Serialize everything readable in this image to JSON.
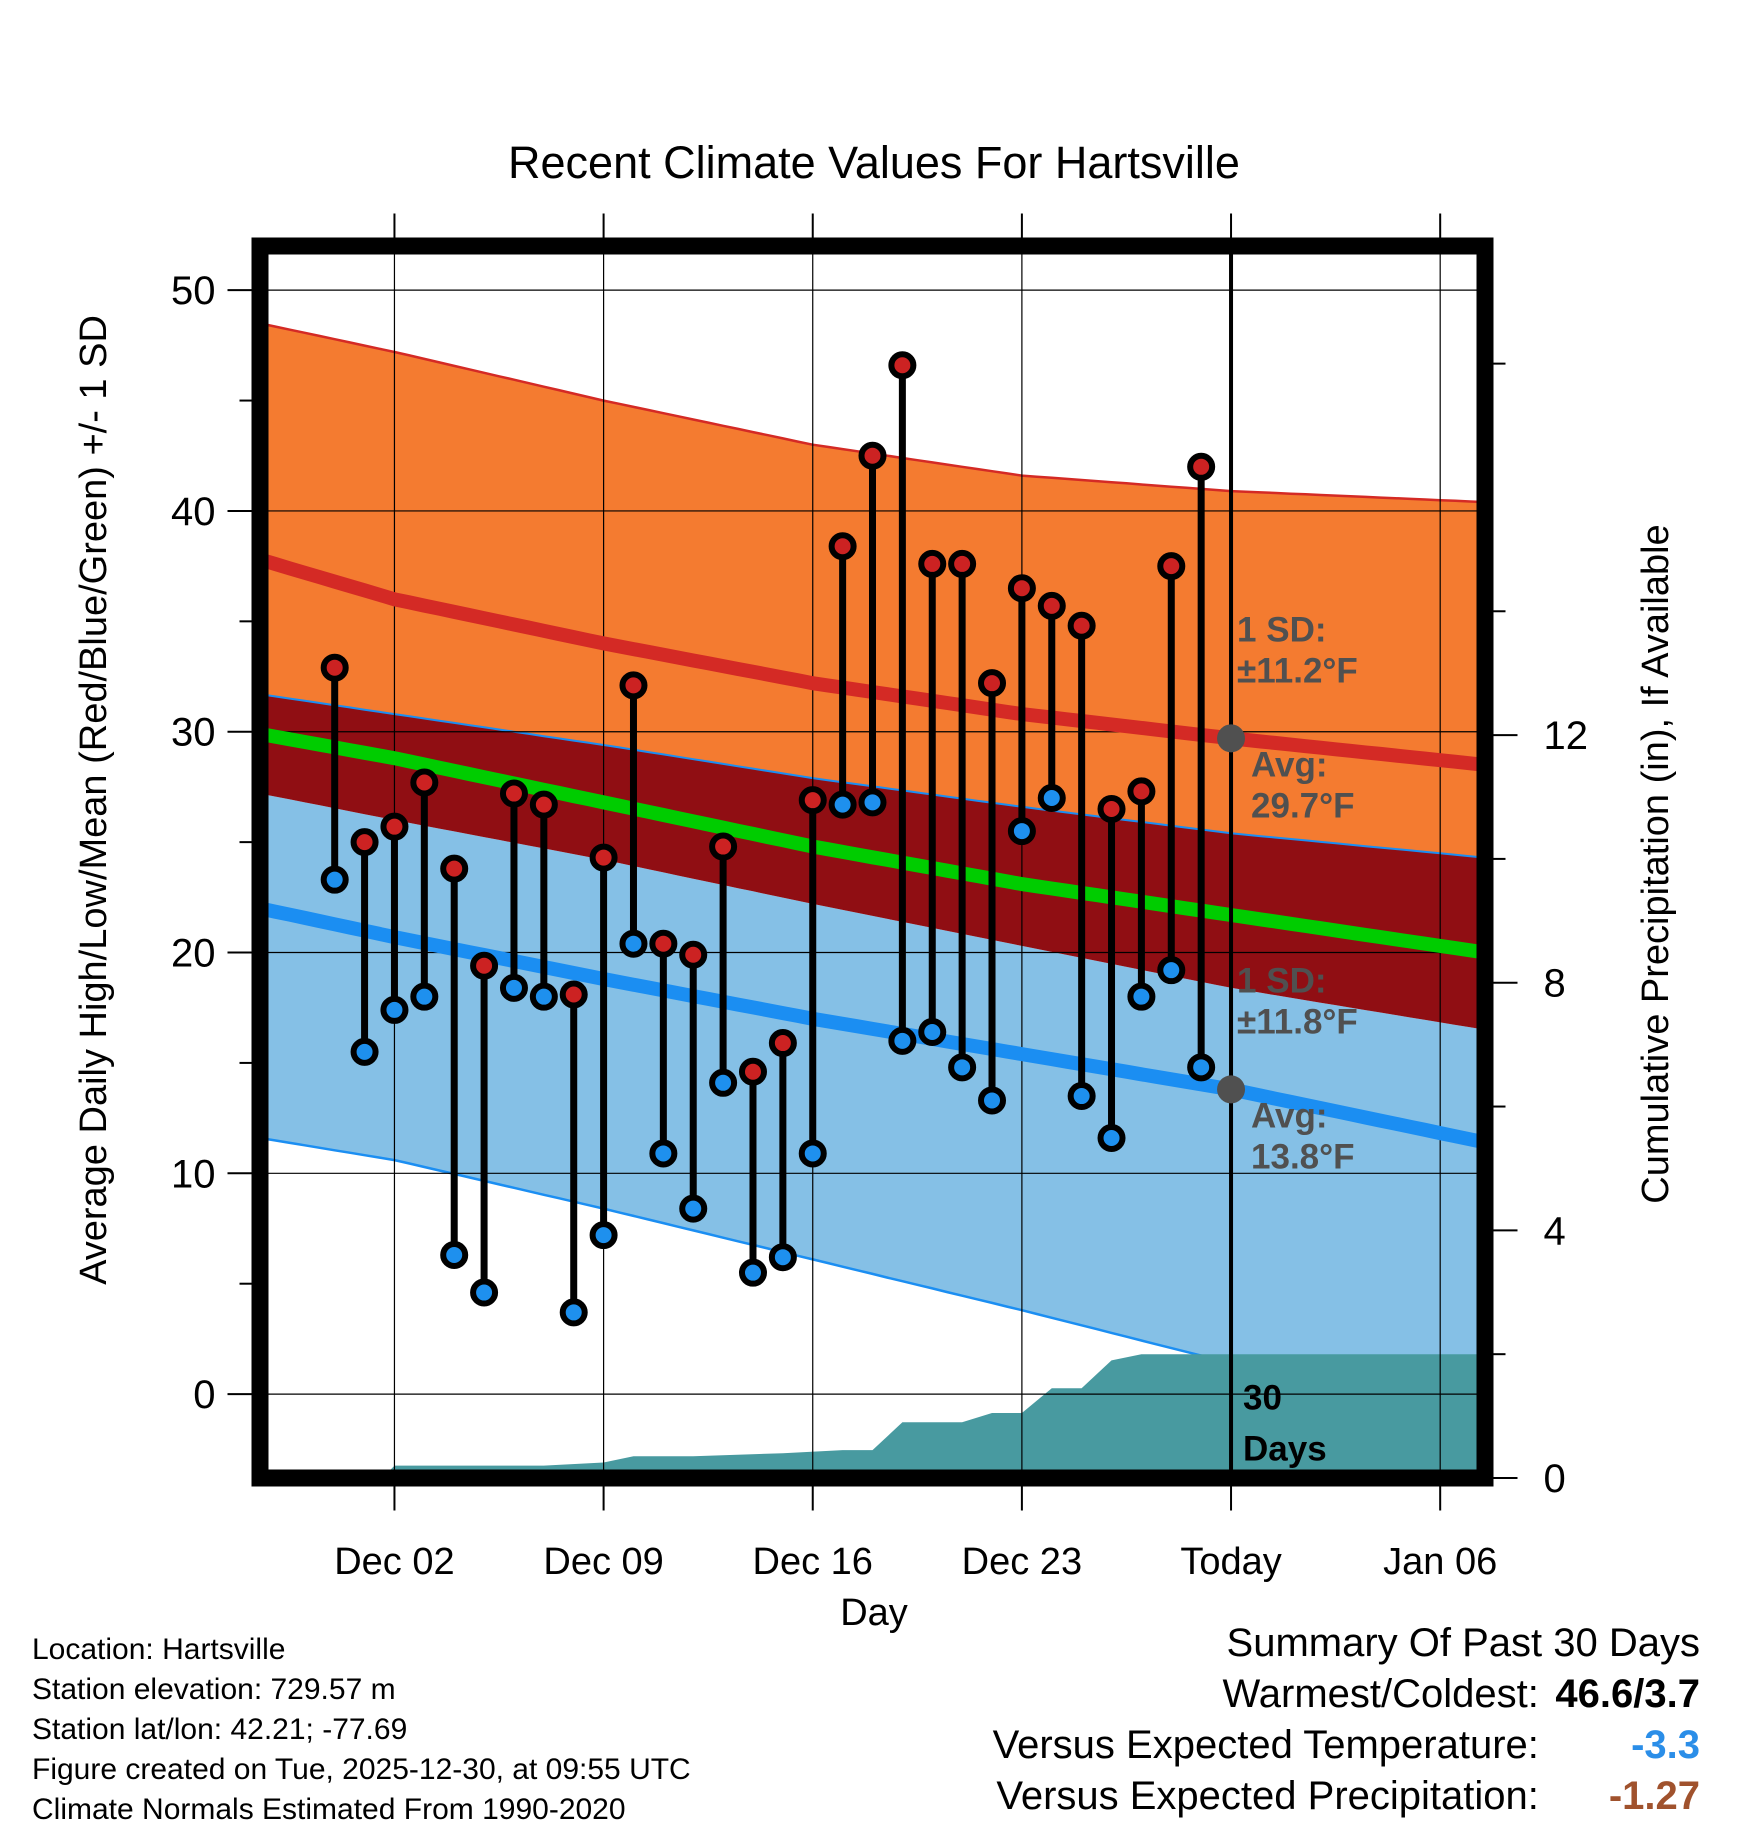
{
  "chart_data": {
    "type": "line",
    "title": "Recent Climate Values For Hartsville",
    "xlabel": "Day",
    "ylabel_left": "Average Daily High/Low/Mean (Red/Blue/Green) +/- 1 SD",
    "ylabel_right": "Cumulative Precipitation (in), If Available",
    "x_range_days": [
      -1.5,
      39.5
    ],
    "x_ticks": [
      {
        "day": 3,
        "label": "Dec 02"
      },
      {
        "day": 10,
        "label": "Dec 09"
      },
      {
        "day": 17,
        "label": "Dec 16"
      },
      {
        "day": 24,
        "label": "Dec 23"
      },
      {
        "day": 31,
        "label": "Today"
      },
      {
        "day": 38,
        "label": "Jan 06"
      }
    ],
    "today_day": 31,
    "ylim_left": [
      -3.8,
      52
    ],
    "y_ticks_left": [
      0,
      10,
      20,
      30,
      40,
      50
    ],
    "ylim_right": [
      0,
      19.9
    ],
    "y_ticks_right": [
      0,
      4,
      8,
      12
    ],
    "normals": {
      "days": [
        -1.5,
        3,
        10,
        17,
        24,
        31,
        39.5
      ],
      "high_avg": [
        37.8,
        36.0,
        34.0,
        32.2,
        30.8,
        29.7,
        28.5
      ],
      "high_sd_upper": [
        48.5,
        47.2,
        45.0,
        43.0,
        41.6,
        40.9,
        40.4
      ],
      "high_sd_lower": [
        31.7,
        30.8,
        29.4,
        27.9,
        26.6,
        25.4,
        24.3
      ],
      "low_avg": [
        22.0,
        20.7,
        18.8,
        17.0,
        15.4,
        13.8,
        11.4
      ],
      "low_sd_upper": [
        27.2,
        26.0,
        24.2,
        22.2,
        20.3,
        18.4,
        16.5
      ],
      "low_sd_lower": [
        11.6,
        10.6,
        8.4,
        6.1,
        3.8,
        1.4,
        -1.5
      ],
      "mean_avg": [
        29.9,
        28.8,
        26.8,
        24.8,
        23.1,
        21.7,
        20.0
      ]
    },
    "observed": {
      "days": [
        1,
        2,
        3,
        4,
        5,
        6,
        7,
        8,
        9,
        10,
        11,
        12,
        13,
        14,
        15,
        16,
        17,
        18,
        19,
        20,
        21,
        22,
        23,
        24,
        25,
        26,
        27,
        28,
        29,
        30
      ],
      "highs": [
        32.9,
        25.0,
        25.7,
        27.7,
        23.8,
        19.4,
        27.2,
        26.7,
        18.1,
        24.3,
        32.1,
        20.4,
        19.9,
        24.8,
        14.6,
        15.9,
        26.9,
        38.4,
        42.5,
        46.6,
        37.6,
        37.6,
        32.2,
        36.5,
        35.7,
        34.8,
        26.5,
        27.3,
        37.5,
        42.0
      ],
      "lows": [
        23.3,
        15.5,
        17.4,
        18.0,
        6.3,
        4.6,
        18.4,
        18.0,
        3.7,
        7.2,
        20.4,
        10.9,
        8.4,
        14.1,
        5.5,
        6.2,
        10.9,
        26.7,
        26.8,
        16.0,
        16.4,
        14.8,
        13.3,
        25.5,
        27.0,
        13.5,
        11.6,
        18.0,
        19.2,
        14.8
      ]
    },
    "precip_cumulative": {
      "days": [
        2.6,
        3,
        5,
        8,
        10,
        11,
        13,
        16,
        18,
        19,
        20,
        22,
        23,
        24,
        25,
        26,
        27,
        28,
        29,
        30,
        39.5
      ],
      "values": [
        0.0,
        0.2,
        0.2,
        0.2,
        0.25,
        0.35,
        0.35,
        0.4,
        0.45,
        0.45,
        0.9,
        0.9,
        1.05,
        1.05,
        1.45,
        1.45,
        1.9,
        2.0,
        2.0,
        2.0,
        2.0
      ]
    },
    "annotations": {
      "high_sd_label": "1 SD:",
      "high_sd_value": "±11.2°F",
      "high_avg_label": "Avg:",
      "high_avg_value": "29.7°F",
      "low_sd_label": "1 SD:",
      "low_sd_value": "±11.8°F",
      "low_avg_label": "Avg:",
      "low_avg_value": "13.8°F",
      "period_number": "30",
      "period_unit": "Days"
    },
    "colors": {
      "high_band": "#f47b30",
      "high_line": "#d42a25",
      "overlap_band": "#900e13",
      "low_band": "#85c0e6",
      "low_line": "#1b8ef2",
      "mean_line": "#00cc00",
      "precip_fill": "#489aa0",
      "marker_high": "#cc2222",
      "marker_low": "#1e90ee",
      "avg_dot": "#505050",
      "annotation_text": "#505050"
    }
  },
  "info": {
    "location": "Location: Hartsville",
    "elevation": "Station elevation: 729.57 m",
    "latlon": "Station lat/lon: 42.21; -77.69",
    "created": "Figure created on Tue, 2025-12-30, at 09:55 UTC",
    "normals": "Climate Normals Estimated From 1990-2020"
  },
  "summary": {
    "title": "Summary Of Past 30 Days",
    "warmest_coldest_label": "Warmest/Coldest:",
    "warmest_coldest_value": "46.6/3.7",
    "temp_label": "Versus Expected Temperature:",
    "temp_value": "-3.3",
    "temp_color": "#2b8ee8",
    "precip_label": "Versus Expected Precipitation:",
    "precip_value": "-1.27",
    "precip_color": "#a0522d"
  }
}
